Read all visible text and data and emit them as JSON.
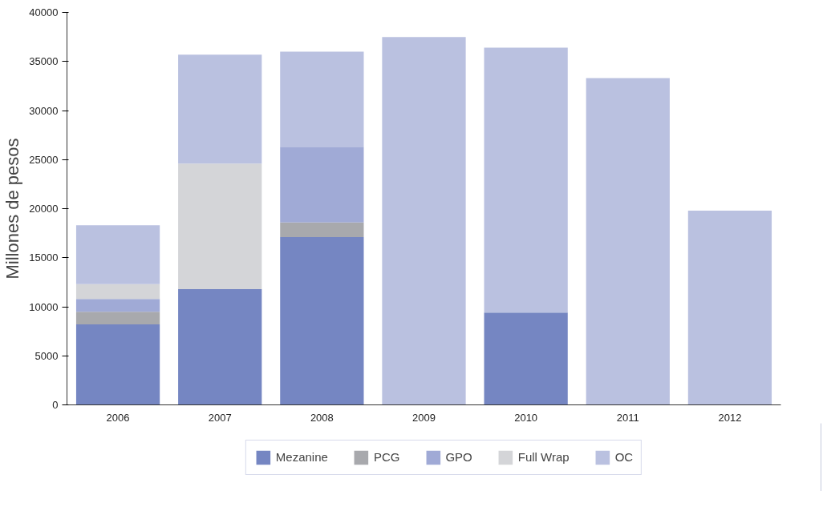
{
  "chart_data": {
    "type": "bar",
    "stacked": true,
    "ylabel": "Millones de pesos",
    "categories": [
      "2006",
      "2007",
      "2008",
      "2009",
      "2010",
      "2011",
      "2012"
    ],
    "series": [
      {
        "name": "Mezanine",
        "color": "#7586c2",
        "values": [
          8200,
          11800,
          17100,
          0,
          9400,
          0,
          0
        ]
      },
      {
        "name": "PCG",
        "color": "#a8a9ad",
        "values": [
          1300,
          0,
          1500,
          0,
          0,
          0,
          0
        ]
      },
      {
        "name": "GPO",
        "color": "#a0aad6",
        "values": [
          1300,
          0,
          7700,
          0,
          0,
          0,
          0
        ]
      },
      {
        "name": "Full Wrap",
        "color": "#d4d5d8",
        "values": [
          1500,
          12800,
          0,
          0,
          0,
          0,
          0
        ]
      },
      {
        "name": "OC",
        "color": "#bac1e0",
        "values": [
          6000,
          11100,
          9700,
          37500,
          27000,
          33300,
          19800
        ]
      }
    ],
    "ylim": [
      0,
      40000
    ],
    "yticks": [
      0,
      5000,
      10000,
      15000,
      20000,
      25000,
      30000,
      35000,
      40000
    ],
    "grid": false,
    "legend": "bottom"
  }
}
